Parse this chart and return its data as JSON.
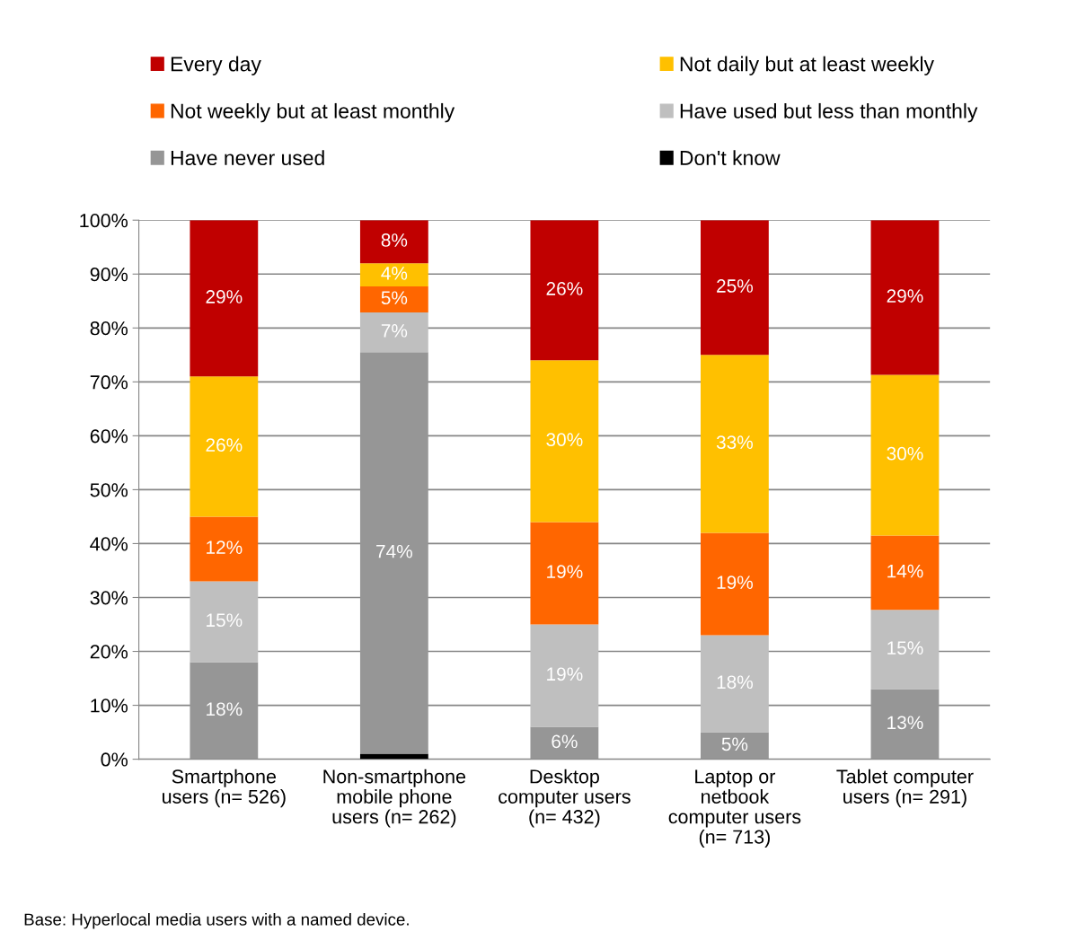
{
  "chart_data": {
    "type": "bar",
    "stacked": true,
    "categories": [
      "Smartphone\nusers (n= 526)",
      "Non-smartphone\nmobile phone\nusers (n= 262)",
      "Desktop\ncomputer users\n(n= 432)",
      "Laptop or\nnetbook\ncomputer users\n(n= 713)",
      "Tablet computer\nusers (n= 291)"
    ],
    "series": [
      {
        "name": "Don't know",
        "color": "#000000",
        "values": [
          null,
          1,
          null,
          null,
          null
        ],
        "value_labels": [
          null,
          null,
          null,
          null,
          null
        ]
      },
      {
        "name": "Have never used",
        "color": "#969696",
        "values": [
          18,
          74.5,
          6,
          5,
          13
        ],
        "value_labels": [
          "18%",
          "74%",
          "6%",
          "5%",
          "13%"
        ]
      },
      {
        "name": "Have used but less than monthly",
        "color": "#bfbfbf",
        "values": [
          15,
          7.4,
          19,
          18,
          14.7
        ],
        "value_labels": [
          "15%",
          "7%",
          "19%",
          "18%",
          "15%"
        ]
      },
      {
        "name": "Not weekly but at least monthly",
        "color": "#ff6600",
        "values": [
          12,
          4.8,
          19,
          19,
          13.8
        ],
        "value_labels": [
          "12%",
          "5%",
          "19%",
          "19%",
          "14%"
        ]
      },
      {
        "name": "Not daily but at least weekly",
        "color": "#ffc000",
        "values": [
          26,
          4.3,
          30,
          33,
          29.8
        ],
        "value_labels": [
          "26%",
          "4%",
          "30%",
          "33%",
          "30%"
        ]
      },
      {
        "name": "Every day",
        "color": "#c00000",
        "values": [
          29,
          8,
          26,
          25,
          28.7
        ],
        "value_labels": [
          "29%",
          "8%",
          "26%",
          "25%",
          "29%"
        ]
      }
    ],
    "ylim": [
      0,
      100
    ],
    "yticks": [
      {
        "value": 0,
        "label": "0%"
      },
      {
        "value": 10,
        "label": "10%"
      },
      {
        "value": 20,
        "label": "20%"
      },
      {
        "value": 30,
        "label": "30%"
      },
      {
        "value": 40,
        "label": "40%"
      },
      {
        "value": 50,
        "label": "50%"
      },
      {
        "value": 60,
        "label": "60%"
      },
      {
        "value": 70,
        "label": "70%"
      },
      {
        "value": 80,
        "label": "80%"
      },
      {
        "value": 90,
        "label": "90%"
      },
      {
        "value": 100,
        "label": "100%"
      }
    ],
    "grid": "y",
    "legend": "top",
    "annotations": [
      "Base: Hyperlocal media users with a named device."
    ]
  }
}
